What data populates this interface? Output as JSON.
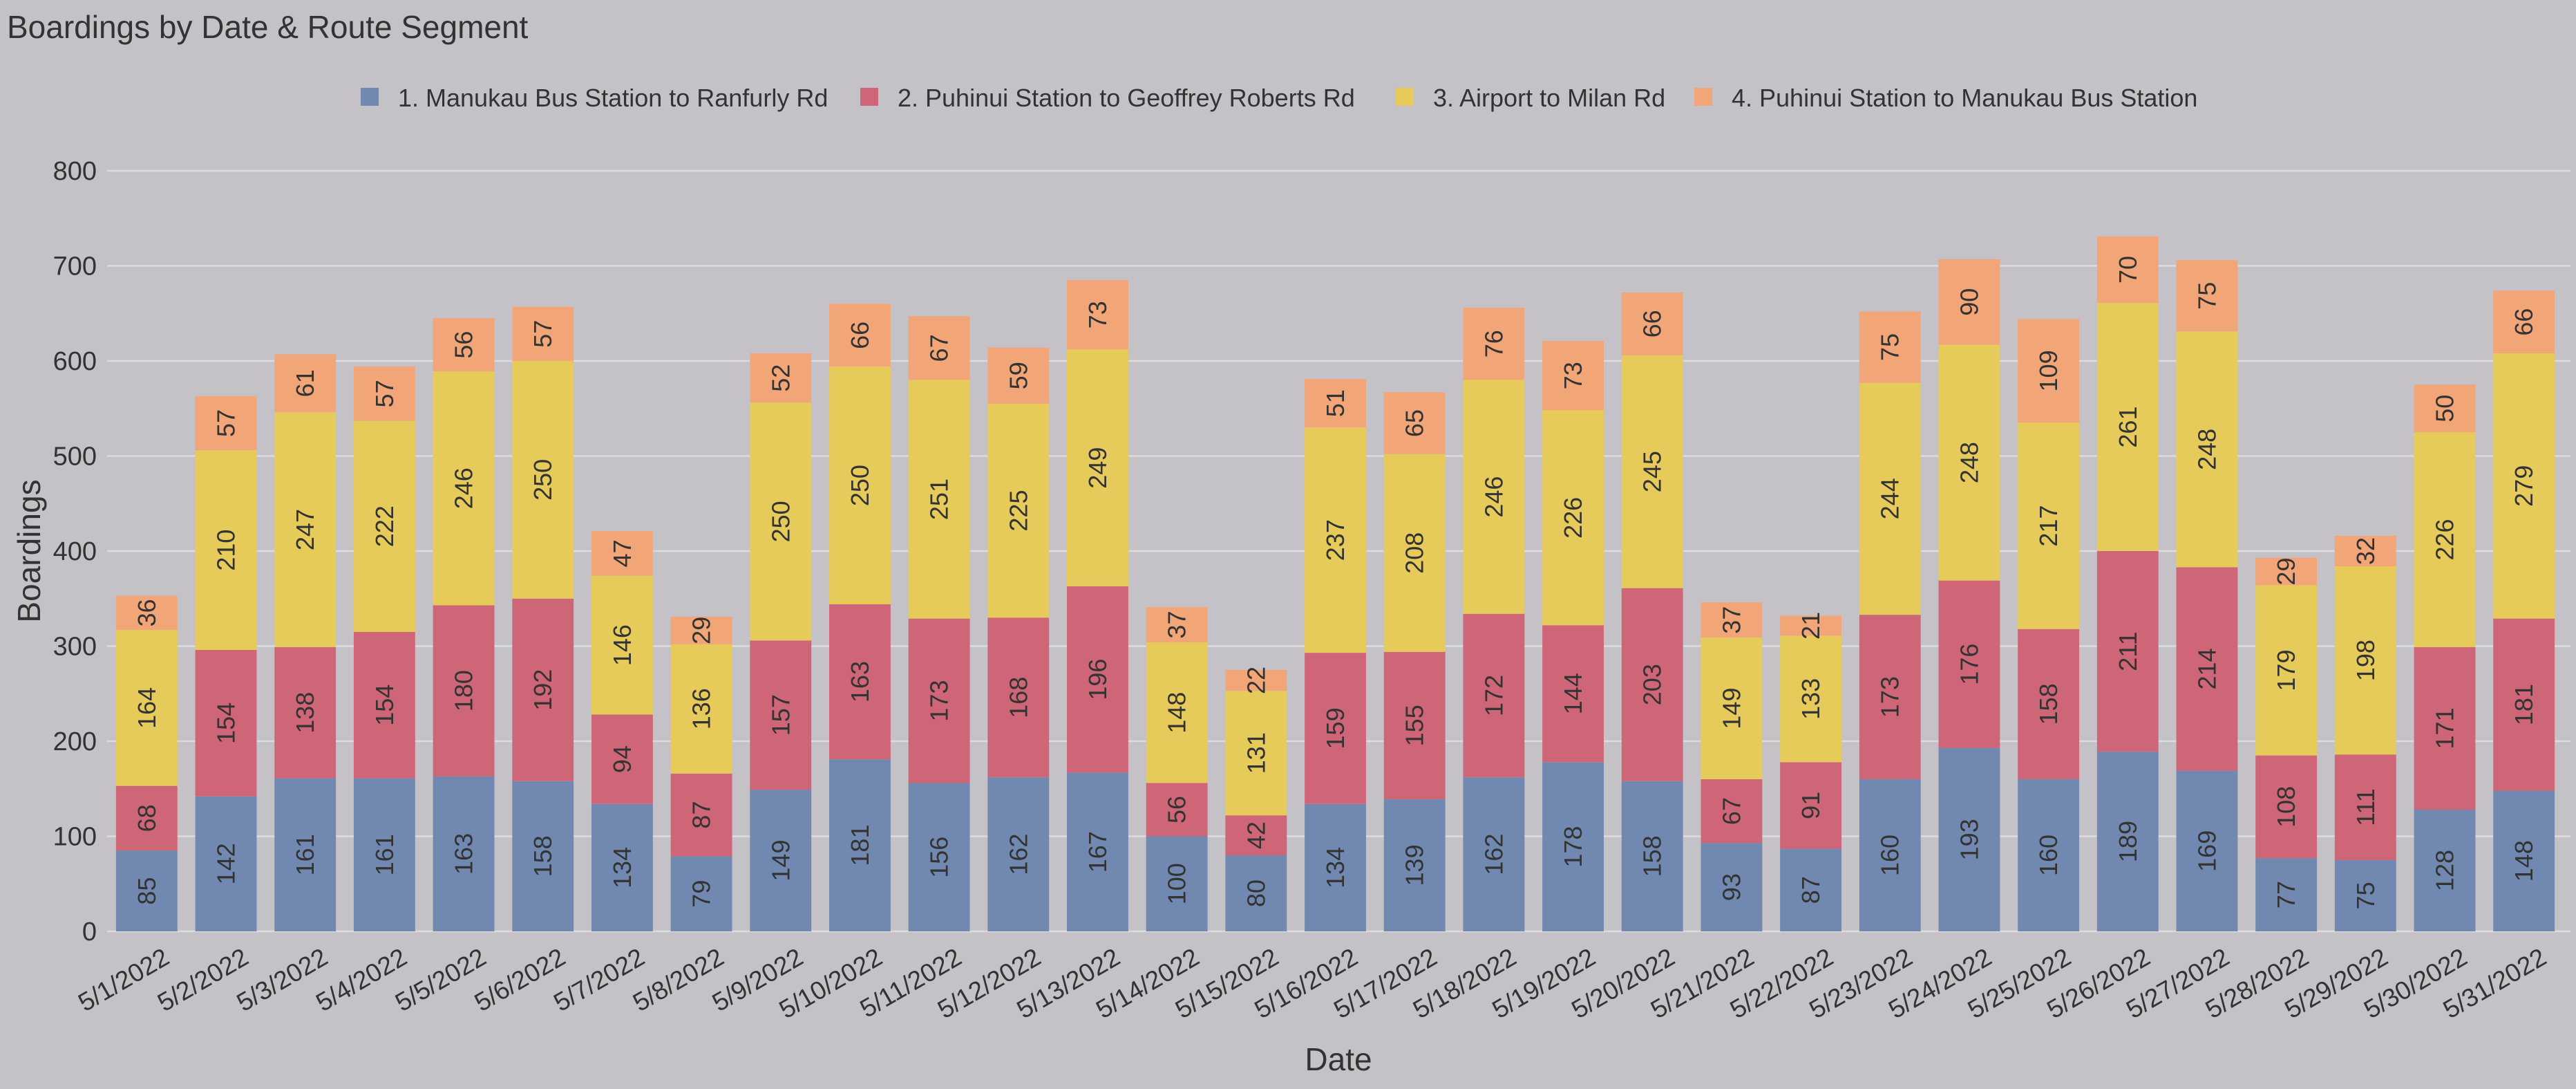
{
  "chart_data": {
    "type": "bar",
    "stacked": true,
    "title": "Boardings by Date & Route Segment",
    "xlabel": "Date",
    "ylabel": "Boardings",
    "ylim": [
      0,
      800
    ],
    "yticks": [
      0,
      100,
      200,
      300,
      400,
      500,
      600,
      700,
      800
    ],
    "grid": true,
    "legend_position": "top",
    "categories": [
      "5/1/2022",
      "5/2/2022",
      "5/3/2022",
      "5/4/2022",
      "5/5/2022",
      "5/6/2022",
      "5/7/2022",
      "5/8/2022",
      "5/9/2022",
      "5/10/2022",
      "5/11/2022",
      "5/12/2022",
      "5/13/2022",
      "5/14/2022",
      "5/15/2022",
      "5/16/2022",
      "5/17/2022",
      "5/18/2022",
      "5/19/2022",
      "5/20/2022",
      "5/21/2022",
      "5/22/2022",
      "5/23/2022",
      "5/24/2022",
      "5/25/2022",
      "5/26/2022",
      "5/27/2022",
      "5/28/2022",
      "5/29/2022",
      "5/30/2022",
      "5/31/2022"
    ],
    "series": [
      {
        "name": "1. Manukau Bus Station to Ranfurly Rd",
        "color": "#7189b0",
        "values": [
          85,
          142,
          161,
          161,
          163,
          158,
          134,
          79,
          149,
          181,
          156,
          162,
          167,
          100,
          80,
          134,
          139,
          162,
          178,
          158,
          93,
          87,
          160,
          193,
          160,
          189,
          169,
          77,
          75,
          128,
          148
        ]
      },
      {
        "name": "2. Puhinui Station to Geoffrey Roberts Rd",
        "color": "#cf6677",
        "values": [
          68,
          154,
          138,
          154,
          180,
          192,
          94,
          87,
          157,
          163,
          173,
          168,
          196,
          56,
          42,
          159,
          155,
          172,
          144,
          203,
          67,
          91,
          173,
          176,
          158,
          211,
          214,
          108,
          111,
          171,
          181
        ]
      },
      {
        "name": "3. Airport to Milan Rd",
        "color": "#e6cb5b",
        "values": [
          164,
          210,
          247,
          222,
          246,
          250,
          146,
          136,
          250,
          250,
          251,
          225,
          249,
          148,
          131,
          237,
          208,
          246,
          226,
          245,
          149,
          133,
          244,
          248,
          217,
          261,
          248,
          179,
          198,
          226,
          279
        ]
      },
      {
        "name": "4. Puhinui Station to Manukau Bus Station",
        "color": "#f2a677",
        "values": [
          36,
          57,
          61,
          57,
          56,
          57,
          47,
          29,
          52,
          66,
          67,
          59,
          73,
          37,
          22,
          51,
          65,
          76,
          73,
          66,
          37,
          21,
          75,
          90,
          109,
          70,
          75,
          29,
          32,
          50,
          66
        ]
      }
    ]
  }
}
